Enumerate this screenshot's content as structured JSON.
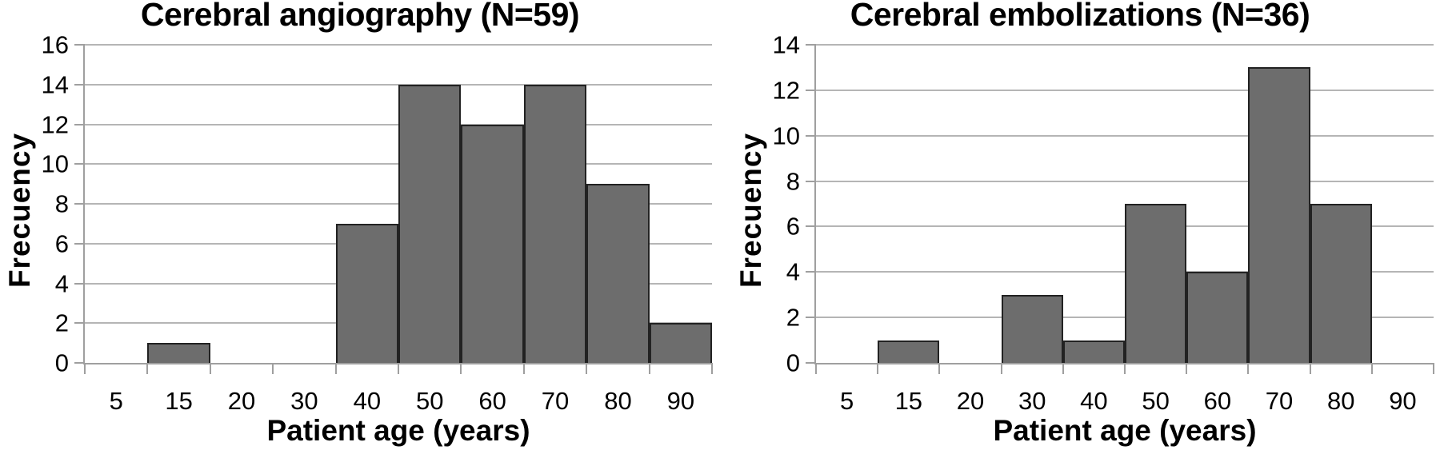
{
  "figure": {
    "description": "Two age-distribution histograms"
  },
  "colors": {
    "background": "#ffffff",
    "bar_fill": "#6d6d6d",
    "bar_border": "#222222",
    "grid": "#b5b5b5",
    "axis": "#9f9f9f",
    "text": "#000000"
  },
  "chart_data": [
    {
      "type": "bar",
      "title": "Cerebral angiography (N=59)",
      "xlabel": "Patient age (years)",
      "ylabel": "Frecuency",
      "categories": [
        "5",
        "15",
        "20",
        "30",
        "40",
        "50",
        "60",
        "70",
        "80",
        "90"
      ],
      "values": [
        0,
        1,
        0,
        0,
        7,
        14,
        12,
        14,
        9,
        2
      ],
      "ylim": [
        0,
        16
      ],
      "ytick_step": 2,
      "grid": true,
      "legend_position": "none"
    },
    {
      "type": "bar",
      "title": "Cerebral embolizations (N=36)",
      "xlabel": "Patient age (years)",
      "ylabel": "Frecuency",
      "categories": [
        "5",
        "15",
        "20",
        "30",
        "40",
        "50",
        "60",
        "70",
        "80",
        "90"
      ],
      "values": [
        0,
        1,
        0,
        3,
        1,
        7,
        4,
        13,
        7,
        0
      ],
      "ylim": [
        0,
        14
      ],
      "ytick_step": 2,
      "grid": true,
      "legend_position": "none"
    }
  ]
}
